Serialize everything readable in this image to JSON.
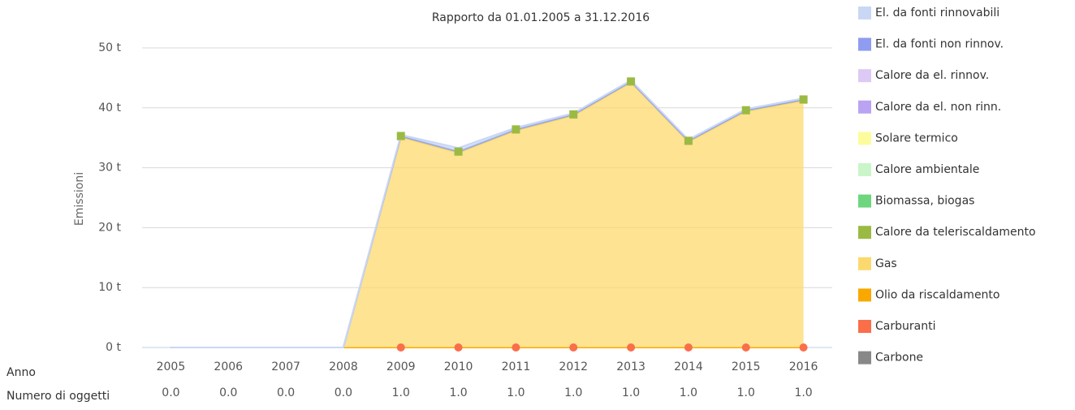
{
  "chart_data": {
    "type": "stacked-area",
    "title": "Rapporto da 01.01.2005 a 31.12.2016",
    "y_label": "Emissioni",
    "x_label": "Anno",
    "row_label": "Numero di oggetti",
    "categories": [
      "2005",
      "2006",
      "2007",
      "2008",
      "2009",
      "2010",
      "2011",
      "2012",
      "2013",
      "2014",
      "2015",
      "2016"
    ],
    "object_counts": [
      "0.0",
      "0.0",
      "0.0",
      "0.0",
      "1.0",
      "1.0",
      "1.0",
      "1.0",
      "1.0",
      "1.0",
      "1.0",
      "1.0"
    ],
    "ylim": [
      0,
      50
    ],
    "yticks": [
      {
        "value": 0,
        "label": "0 t"
      },
      {
        "value": 10,
        "label": "10 t"
      },
      {
        "value": 20,
        "label": "20 t"
      },
      {
        "value": 30,
        "label": "30 t"
      },
      {
        "value": 40,
        "label": "40 t"
      },
      {
        "value": 50,
        "label": "50 t"
      }
    ],
    "grid": true,
    "legend": "right",
    "series": [
      {
        "name": "El. da fonti rinnovabili",
        "color": "#c9d7f5",
        "values": [
          0,
          0,
          0,
          0,
          0.2,
          0.6,
          0.3,
          0.2,
          0.2,
          0.2,
          0.2,
          0.2
        ]
      },
      {
        "name": "El. da fonti non rinnov.",
        "color": "#8f9cf0",
        "values": [
          0,
          0,
          0,
          0,
          0,
          0,
          0,
          0,
          0,
          0,
          0,
          0
        ]
      },
      {
        "name": "Calore da el. rinnov.",
        "color": "#dcc9f5",
        "values": [
          0,
          0,
          0,
          0,
          0,
          0,
          0,
          0,
          0,
          0,
          0,
          0
        ]
      },
      {
        "name": "Calore da el. non rinn.",
        "color": "#b9a3f2",
        "values": [
          0,
          0,
          0,
          0,
          0,
          0,
          0,
          0,
          0,
          0,
          0,
          0
        ]
      },
      {
        "name": "Solare termico",
        "color": "#fcfc9c",
        "values": [
          0,
          0,
          0,
          0,
          0,
          0,
          0,
          0,
          0,
          0,
          0,
          0
        ]
      },
      {
        "name": "Calore ambientale",
        "color": "#c9f5c9",
        "values": [
          0,
          0,
          0,
          0,
          0,
          0,
          0,
          0,
          0,
          0,
          0,
          0
        ]
      },
      {
        "name": "Biomassa, biogas",
        "color": "#6ed67e",
        "values": [
          0,
          0,
          0,
          0,
          0,
          0,
          0,
          0,
          0,
          0,
          0,
          0
        ]
      },
      {
        "name": "Calore da teleriscaldamento",
        "color": "#9bba44",
        "marker": "square",
        "values": [
          0,
          0,
          0,
          0,
          0.2,
          0.2,
          0.2,
          0.2,
          0.2,
          0.2,
          0.2,
          0.2
        ]
      },
      {
        "name": "Gas",
        "color": "#fcd96e",
        "marker": "triangle",
        "values": [
          0,
          0,
          0,
          0,
          35.1,
          32.5,
          36.2,
          38.7,
          44.2,
          34.3,
          39.4,
          41.2
        ]
      },
      {
        "name": "Olio da riscaldamento",
        "color": "#f9a800",
        "values": [
          0,
          0,
          0,
          0,
          0,
          0,
          0,
          0,
          0,
          0,
          0,
          0
        ]
      },
      {
        "name": "Carburanti",
        "color": "#fa6e4a",
        "marker": "circle",
        "values": [
          0,
          0,
          0,
          0,
          0,
          0,
          0,
          0,
          0,
          0,
          0,
          0
        ]
      },
      {
        "name": "Carbone",
        "color": "#888888",
        "values": [
          0,
          0,
          0,
          0,
          0,
          0,
          0,
          0,
          0,
          0,
          0,
          0
        ]
      }
    ]
  }
}
